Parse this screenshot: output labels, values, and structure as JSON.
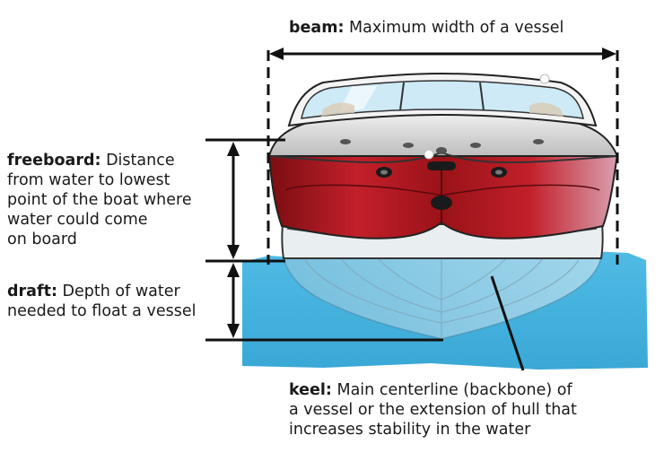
{
  "colors": {
    "water": "#5bc3e8",
    "water_dark": "#3aa6d2",
    "hull_red": "#b3161c",
    "hull_red_dark": "#7a0d12",
    "hull_white": "#e6e6e6",
    "windshield": "#bfe8f7",
    "line": "#111111"
  },
  "labels": {
    "beam": {
      "term": "beam:",
      "lines": [
        "Maximum width of a vessel"
      ]
    },
    "freeboard": {
      "term": "freeboard:",
      "lines": [
        "Distance",
        "from water to lowest",
        "point of the boat where",
        "water could come",
        "on board"
      ]
    },
    "draft": {
      "term": "draft:",
      "lines": [
        "Depth of water",
        "needed to float a vessel"
      ]
    },
    "keel": {
      "term": "keel:",
      "lines": [
        "Main centerline (backbone) of",
        "a vessel or the extension of hull that",
        "increases stability in the water"
      ]
    }
  }
}
